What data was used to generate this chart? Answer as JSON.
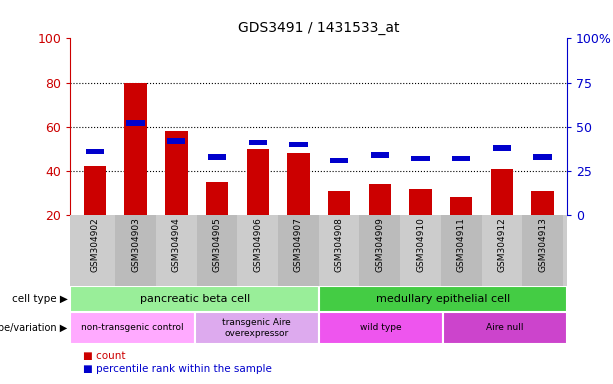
{
  "title": "GDS3491 / 1431533_at",
  "samples": [
    "GSM304902",
    "GSM304903",
    "GSM304904",
    "GSM304905",
    "GSM304906",
    "GSM304907",
    "GSM304908",
    "GSM304909",
    "GSM304910",
    "GSM304911",
    "GSM304912",
    "GSM304913"
  ],
  "count_values": [
    42,
    80,
    58,
    35,
    50,
    48,
    31,
    34,
    32,
    28,
    41,
    31
  ],
  "percentile_values": [
    36,
    52,
    42,
    33,
    41,
    40,
    31,
    34,
    32,
    32,
    38,
    33
  ],
  "ylim_left": [
    20,
    100
  ],
  "ylim_right": [
    0,
    100
  ],
  "yticks_left": [
    20,
    40,
    60,
    80,
    100
  ],
  "yticks_right": [
    0,
    25,
    50,
    75,
    100
  ],
  "ytick_labels_right": [
    "0",
    "25",
    "50",
    "75",
    "100%"
  ],
  "bar_color": "#cc0000",
  "percentile_color": "#0000cc",
  "bg_color": "#ffffff",
  "cell_type_groups": [
    {
      "label": "pancreatic beta cell",
      "start": 0,
      "end": 6,
      "color": "#99ee99"
    },
    {
      "label": "medullary epithelial cell",
      "start": 6,
      "end": 12,
      "color": "#44cc44"
    }
  ],
  "genotype_groups": [
    {
      "label": "non-transgenic control",
      "start": 0,
      "end": 3,
      "color": "#ffaaff"
    },
    {
      "label": "transgenic Aire\noverexpressor",
      "start": 3,
      "end": 6,
      "color": "#ddaaee"
    },
    {
      "label": "wild type",
      "start": 6,
      "end": 9,
      "color": "#ee55ee"
    },
    {
      "label": "Aire null",
      "start": 9,
      "end": 12,
      "color": "#cc44cc"
    }
  ],
  "left_axis_color": "#cc0000",
  "right_axis_color": "#0000cc",
  "row_label_cell_type": "cell type",
  "row_label_genotype": "genotype/variation",
  "legend_count": "count",
  "legend_percentile": "percentile rank within the sample",
  "bar_width": 0.55,
  "percentile_bar_width": 0.45,
  "percentile_bar_height": 2.5,
  "tick_area_bg": "#cccccc"
}
